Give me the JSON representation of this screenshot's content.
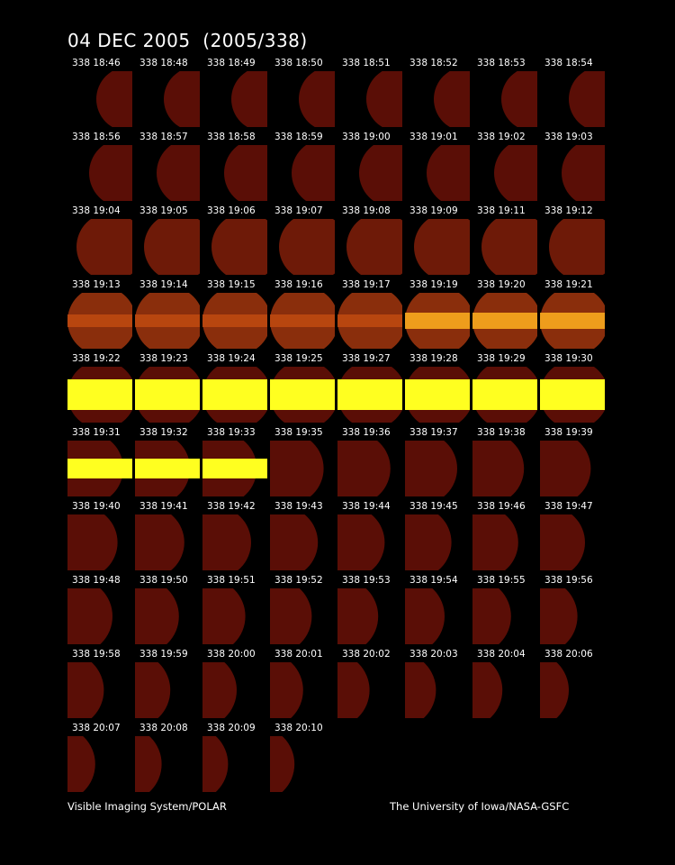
{
  "title": "04 DEC 2005  (2005/338)",
  "frames": [
    "338 18:46",
    "338 18:48",
    "338 18:49",
    "338 18:50",
    "338 18:51",
    "338 18:52",
    "338 18:53",
    "338 18:54",
    "338 18:56",
    "338 18:57",
    "338 18:58",
    "338 18:59",
    "338 19:00",
    "338 19:01",
    "338 19:02",
    "338 19:03",
    "338 19:04",
    "338 19:05",
    "338 19:06",
    "338 19:07",
    "338 19:08",
    "338 19:09",
    "338 19:11",
    "338 19:12",
    "338 19:13",
    "338 19:14",
    "338 19:15",
    "338 19:16",
    "338 19:17",
    "338 19:19",
    "338 19:20",
    "338 19:21",
    "338 19:22",
    "338 19:23",
    "338 19:24",
    "338 19:25",
    "338 19:27",
    "338 19:28",
    "338 19:29",
    "338 19:30",
    "338 19:31",
    "338 19:32",
    "338 19:33",
    "338 19:35",
    "338 19:36",
    "338 19:37",
    "338 19:38",
    "338 19:39",
    "338 19:40",
    "338 19:41",
    "338 19:42",
    "338 19:43",
    "338 19:44",
    "338 19:45",
    "338 19:46",
    "338 19:47",
    "338 19:48",
    "338 19:50",
    "338 19:51",
    "338 19:52",
    "338 19:53",
    "338 19:54",
    "338 19:55",
    "338 19:56",
    "338 19:58",
    "338 19:59",
    "338 20:00",
    "338 20:01",
    "338 20:02",
    "338 20:03",
    "338 20:04",
    "338 20:06",
    "338 20:07",
    "338 20:08",
    "338 20:09",
    "338 20:10"
  ],
  "footer_left": "Visible Imaging System/POLAR",
  "footer_right": "The University of Iowa/NASA-GSFC",
  "colors": {
    "background": "#000000",
    "disk": "#5a0e06",
    "glow": "#c04a10",
    "band": "#ffff20"
  }
}
